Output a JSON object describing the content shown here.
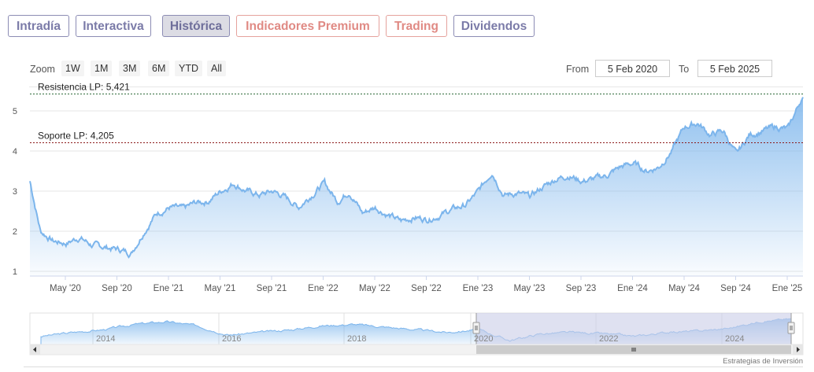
{
  "tabs": [
    {
      "label": "Intradía",
      "style": "purple"
    },
    {
      "label": "Interactiva",
      "style": "purple"
    },
    {
      "label": "Histórica",
      "style": "active"
    },
    {
      "label": "Indicadores Premium",
      "style": "red"
    },
    {
      "label": "Trading",
      "style": "red"
    },
    {
      "label": "Dividendos",
      "style": "purple"
    }
  ],
  "toolbar": {
    "zoom_label": "Zoom",
    "zoom_buttons": [
      "1W",
      "1M",
      "3M",
      "6M",
      "YTD",
      "All"
    ],
    "from_label": "From",
    "from_value": "5 Feb 2020",
    "to_label": "To",
    "to_value": "5 Feb 2025"
  },
  "credits": "Estrategias de Inversión",
  "colors": {
    "line": "#7cb5ec",
    "resistance": "#2f6b3b",
    "support": "#8b1a1a",
    "navigator_mask": "#c9cde8"
  },
  "chart_data": {
    "type": "area",
    "x_range": [
      "2020-02-05",
      "2025-02-05"
    ],
    "ylim": [
      1,
      5.5
    ],
    "y_ticks": [
      1,
      2,
      3,
      4,
      5
    ],
    "x_tick_labels": [
      "May '20",
      "Sep '20",
      "Ene '21",
      "May '21",
      "Sep '21",
      "Ene '22",
      "May '22",
      "Sep '22",
      "Ene '23",
      "May '23",
      "Sep '23",
      "Ene '24",
      "May '24",
      "Sep '24",
      "Ene '25"
    ],
    "grid": true,
    "legend": false,
    "plot_lines": [
      {
        "label": "Resistencia LP: 5,421",
        "value": 5.421,
        "style": "dashed"
      },
      {
        "label": "Soporte LP: 4,205",
        "value": 4.205,
        "style": "dashed"
      }
    ],
    "series": [
      {
        "x": [
          "2020-02",
          "2020-03",
          "2020-04",
          "2020-05",
          "2020-06",
          "2020-07",
          "2020-08",
          "2020-09",
          "2020-10",
          "2020-11",
          "2020-12",
          "2021-01",
          "2021-02",
          "2021-03",
          "2021-04",
          "2021-05",
          "2021-06",
          "2021-07",
          "2021-08",
          "2021-09",
          "2021-10",
          "2021-11",
          "2021-12",
          "2022-01",
          "2022-02",
          "2022-03",
          "2022-04",
          "2022-05",
          "2022-06",
          "2022-07",
          "2022-08",
          "2022-09",
          "2022-10",
          "2022-11",
          "2022-12",
          "2023-01",
          "2023-02",
          "2023-03",
          "2023-04",
          "2023-05",
          "2023-06",
          "2023-07",
          "2023-08",
          "2023-09",
          "2023-10",
          "2023-11",
          "2023-12",
          "2024-01",
          "2024-02",
          "2024-03",
          "2024-04",
          "2024-05",
          "2024-06",
          "2024-07",
          "2024-08",
          "2024-09",
          "2024-10",
          "2024-11",
          "2024-12",
          "2025-01",
          "2025-02"
        ],
        "y": [
          3.45,
          2.0,
          1.75,
          1.7,
          1.85,
          1.65,
          1.6,
          1.55,
          1.45,
          2.0,
          2.45,
          2.6,
          2.55,
          2.7,
          2.75,
          3.0,
          3.2,
          3.0,
          2.9,
          3.0,
          2.85,
          2.6,
          2.9,
          3.2,
          2.75,
          3.0,
          2.45,
          2.6,
          2.4,
          2.25,
          2.35,
          2.3,
          2.4,
          2.55,
          2.65,
          3.0,
          3.5,
          2.9,
          2.95,
          2.85,
          3.1,
          3.3,
          3.4,
          3.25,
          3.3,
          3.4,
          3.6,
          3.7,
          3.5,
          3.6,
          4.0,
          4.6,
          4.7,
          4.4,
          4.5,
          3.9,
          4.4,
          4.5,
          4.6,
          4.55,
          5.3
        ]
      }
    ]
  },
  "navigator": {
    "x_tick_labels": [
      "2014",
      "2016",
      "2018",
      "2020",
      "2022",
      "2024"
    ],
    "x": [
      2013,
      2013.5,
      2014,
      2014.5,
      2015,
      2015.5,
      2016,
      2016.5,
      2017,
      2017.5,
      2018,
      2018.5,
      2019,
      2019.5,
      2020,
      2020.5,
      2021,
      2021.5,
      2022,
      2022.5,
      2023,
      2023.5,
      2024,
      2024.5,
      2025
    ],
    "y": [
      0.3,
      0.45,
      0.55,
      0.75,
      0.85,
      0.7,
      0.35,
      0.45,
      0.55,
      0.7,
      0.75,
      0.65,
      0.55,
      0.45,
      0.55,
      0.15,
      0.4,
      0.45,
      0.4,
      0.3,
      0.45,
      0.5,
      0.6,
      0.85,
      0.95
    ]
  }
}
